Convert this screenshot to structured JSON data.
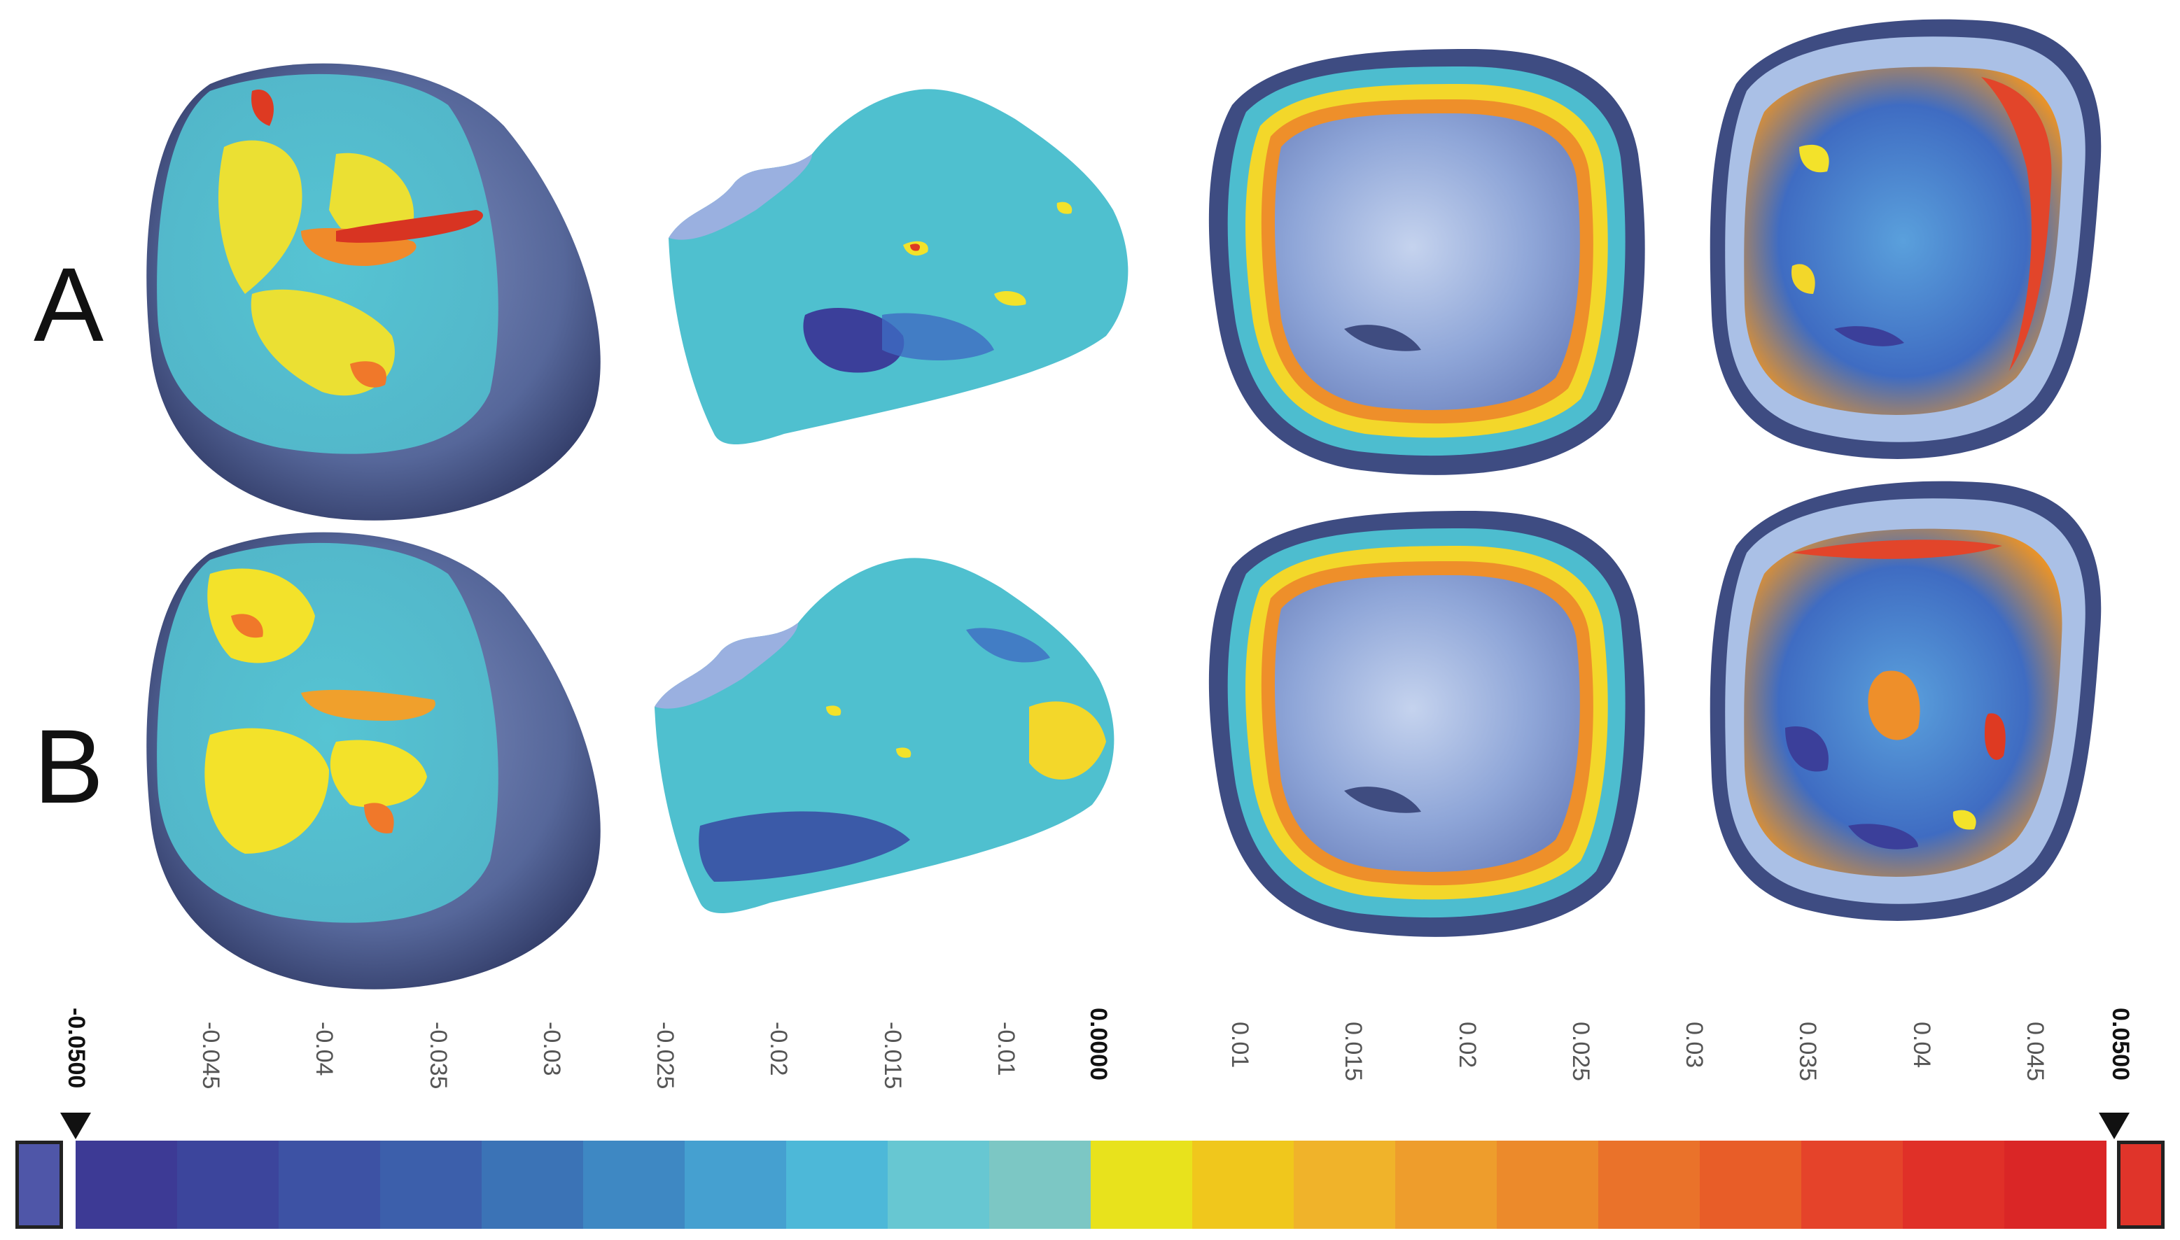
{
  "row_labels": [
    "A",
    "B"
  ],
  "color_scale": {
    "min_label": "-0.0500",
    "max_label": "0.0500",
    "center_label": "0.0000",
    "ticks": [
      "-0.045",
      "-0.04",
      "-0.035",
      "-0.03",
      "-0.025",
      "-0.02",
      "-0.015",
      "-0.01",
      "0.01",
      "0.015",
      "0.02",
      "0.025",
      "0.03",
      "0.035",
      "0.04",
      "0.045"
    ],
    "segments": [
      "#3d3a95",
      "#3c459c",
      "#3d52a4",
      "#3c5fab",
      "#3b73b6",
      "#3e88c3",
      "#45a0d0",
      "#4db8d8",
      "#67c7d2",
      "#7cc7c4",
      "#e8e21c",
      "#f0c71c",
      "#f0b32a",
      "#ee9d2c",
      "#ec8a2b",
      "#ea722a",
      "#e85d28",
      "#e5432a",
      "#e03028",
      "#da2626"
    ],
    "low_out_color": "#4f56a8",
    "high_out_color": "#e0342a"
  },
  "colors": {
    "base": "#5d6ea0",
    "base_dark": "#3f4c80",
    "surface_blue": "#8aa3d6",
    "surface_light": "#b8c8ea",
    "cyan": "#4dbdcf",
    "teal": "#63c2c4",
    "yellow": "#f3e22a",
    "orange": "#f09a2c",
    "red": "#de3a22",
    "deep_blue": "#3b3f9a"
  }
}
